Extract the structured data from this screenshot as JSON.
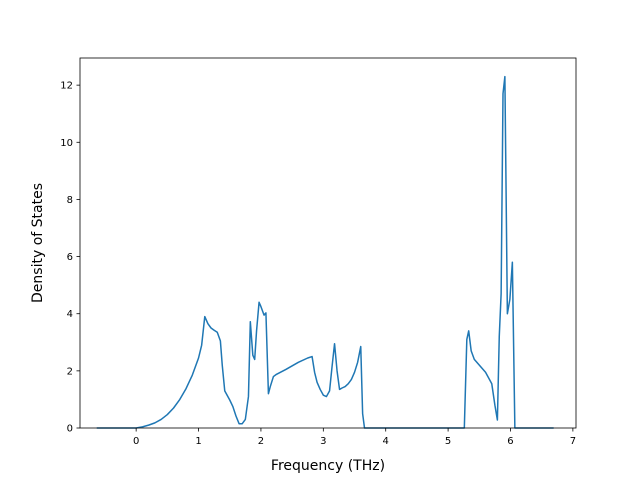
{
  "chart_data": {
    "type": "line",
    "xlabel": "Frequency (THz)",
    "ylabel": "Density of States",
    "xlim": [
      -0.9,
      7.05
    ],
    "ylim": [
      0,
      12.95
    ],
    "xticks": [
      0,
      1,
      2,
      3,
      4,
      5,
      6,
      7
    ],
    "xtick_labels": [
      "0",
      "1",
      "2",
      "3",
      "4",
      "5",
      "6",
      "7"
    ],
    "yticks": [
      0,
      2,
      4,
      6,
      8,
      10,
      12
    ],
    "ytick_labels": [
      "0",
      "2",
      "4",
      "6",
      "8",
      "10",
      "12"
    ],
    "grid": false,
    "line_color": "#1f77b4",
    "series": [
      {
        "x": [
          -0.62,
          -0.3,
          0.0,
          0.1,
          0.2,
          0.3,
          0.4,
          0.5,
          0.6,
          0.7,
          0.8,
          0.9,
          1.0,
          1.05,
          1.1,
          1.15,
          1.2,
          1.25,
          1.3,
          1.35,
          1.38,
          1.42,
          1.5,
          1.55,
          1.6,
          1.65,
          1.7,
          1.75,
          1.8,
          1.83,
          1.87,
          1.9,
          1.93,
          1.97,
          2.0,
          2.05,
          2.08,
          2.12,
          2.15,
          2.2,
          2.25,
          2.4,
          2.6,
          2.75,
          2.82,
          2.86,
          2.9,
          2.95,
          3.0,
          3.05,
          3.1,
          3.14,
          3.18,
          3.22,
          3.26,
          3.3,
          3.35,
          3.4,
          3.45,
          3.5,
          3.55,
          3.6,
          3.63,
          3.66,
          3.69,
          3.72,
          3.8,
          5.26,
          5.3,
          5.33,
          5.37,
          5.42,
          5.5,
          5.6,
          5.7,
          5.75,
          5.79,
          5.82,
          5.85,
          5.88,
          5.91,
          5.95,
          5.99,
          6.03,
          6.07,
          6.09,
          6.2,
          6.68
        ],
        "y": [
          0,
          0,
          0,
          0.04,
          0.1,
          0.18,
          0.3,
          0.47,
          0.7,
          1.0,
          1.38,
          1.85,
          2.45,
          2.9,
          3.9,
          3.65,
          3.5,
          3.42,
          3.35,
          3.05,
          2.2,
          1.3,
          0.98,
          0.75,
          0.42,
          0.15,
          0.15,
          0.3,
          1.1,
          3.72,
          2.55,
          2.4,
          3.4,
          4.4,
          4.25,
          3.95,
          4.03,
          1.2,
          1.45,
          1.8,
          1.88,
          2.05,
          2.3,
          2.45,
          2.5,
          1.95,
          1.6,
          1.35,
          1.15,
          1.1,
          1.3,
          2.15,
          2.95,
          2.0,
          1.35,
          1.4,
          1.45,
          1.55,
          1.7,
          1.95,
          2.3,
          2.85,
          0.5,
          0,
          0,
          0,
          0,
          0,
          3.1,
          3.4,
          2.7,
          2.4,
          2.2,
          1.95,
          1.55,
          0.8,
          0.28,
          3.2,
          4.7,
          11.7,
          12.3,
          4.0,
          4.5,
          5.8,
          0,
          0,
          0,
          0
        ]
      }
    ]
  }
}
